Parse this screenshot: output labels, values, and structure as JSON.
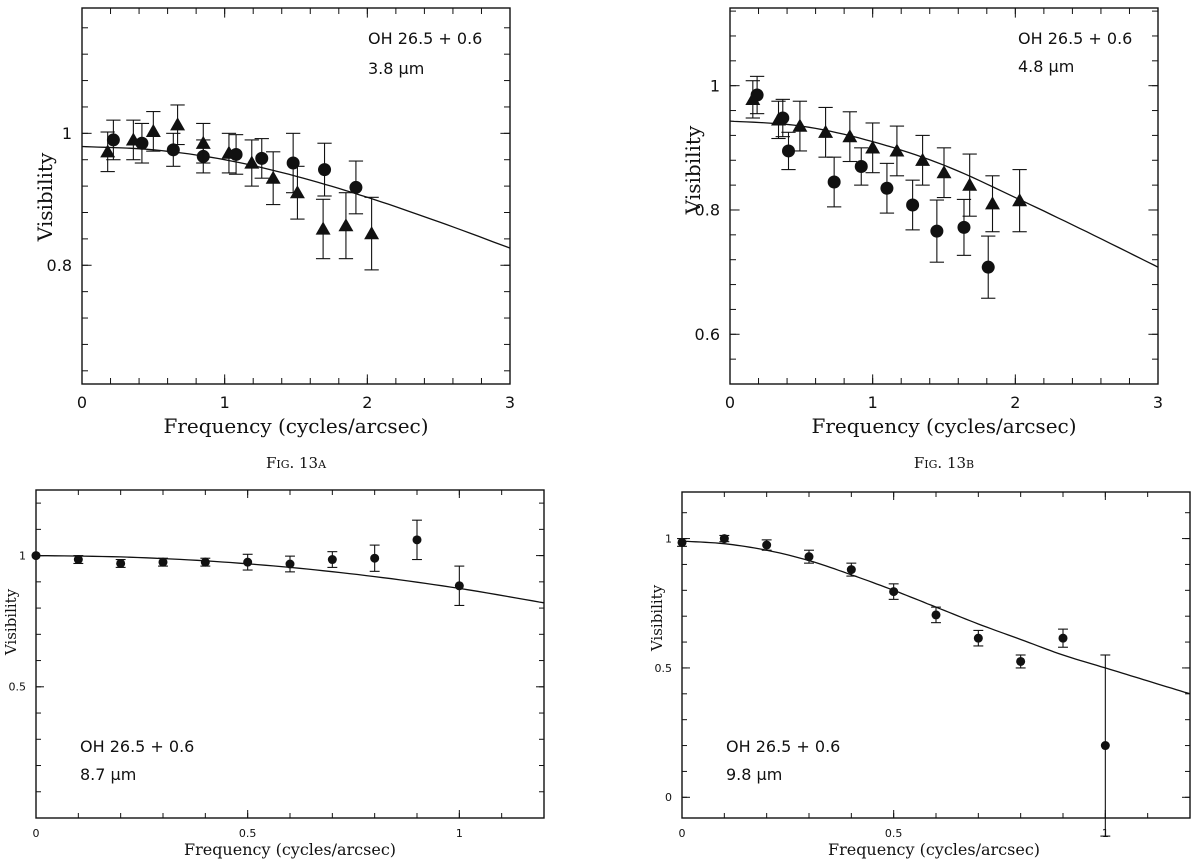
{
  "chart_data": [
    {
      "id": "a",
      "type": "scatter",
      "annotation": [
        "OH 26.5 + 0.6",
        "3.8 μm"
      ],
      "caption": "Fig. 13a",
      "xlabel": "Frequency (cycles/arcsec)",
      "ylabel": "Visibility",
      "xlim": [
        0,
        3
      ],
      "ylim": [
        0.62,
        1.19
      ],
      "xticks": [
        0,
        1,
        2,
        3
      ],
      "xtick_labels": [
        "0",
        "1",
        "2",
        "3"
      ],
      "yticks": [
        0.8,
        1.0
      ],
      "ytick_labels": [
        "0.8",
        "1"
      ],
      "series": [
        {
          "marker": "circle",
          "points": [
            {
              "x": 0.22,
              "y": 0.99,
              "err": 0.03
            },
            {
              "x": 0.42,
              "y": 0.985,
              "err": 0.03
            },
            {
              "x": 0.64,
              "y": 0.975,
              "err": 0.025
            },
            {
              "x": 0.85,
              "y": 0.965,
              "err": 0.025
            },
            {
              "x": 1.08,
              "y": 0.968,
              "err": 0.03
            },
            {
              "x": 1.26,
              "y": 0.962,
              "err": 0.03
            },
            {
              "x": 1.48,
              "y": 0.955,
              "err": 0.045
            },
            {
              "x": 1.7,
              "y": 0.945,
              "err": 0.04
            },
            {
              "x": 1.92,
              "y": 0.918,
              "err": 0.04
            }
          ]
        },
        {
          "marker": "triangle",
          "points": [
            {
              "x": 0.18,
              "y": 0.972,
              "err": 0.03
            },
            {
              "x": 0.36,
              "y": 0.99,
              "err": 0.03
            },
            {
              "x": 0.5,
              "y": 1.003,
              "err": 0.03
            },
            {
              "x": 0.67,
              "y": 1.013,
              "err": 0.03
            },
            {
              "x": 0.85,
              "y": 0.985,
              "err": 0.03
            },
            {
              "x": 1.03,
              "y": 0.97,
              "err": 0.03
            },
            {
              "x": 1.19,
              "y": 0.955,
              "err": 0.035
            },
            {
              "x": 1.34,
              "y": 0.932,
              "err": 0.04
            },
            {
              "x": 1.51,
              "y": 0.91,
              "err": 0.04
            },
            {
              "x": 1.69,
              "y": 0.855,
              "err": 0.045
            },
            {
              "x": 1.85,
              "y": 0.86,
              "err": 0.05
            },
            {
              "x": 2.03,
              "y": 0.848,
              "err": 0.055
            }
          ]
        }
      ],
      "model": {
        "x": [
          0,
          0.5,
          1.0,
          1.5,
          2.0,
          2.5,
          3.0
        ],
        "y": [
          0.98,
          0.975,
          0.96,
          0.935,
          0.903,
          0.866,
          0.826
        ]
      }
    },
    {
      "id": "b",
      "type": "scatter",
      "annotation": [
        "OH 26.5 + 0.6",
        "4.8 μm"
      ],
      "caption": "Fig. 13b",
      "xlabel": "Frequency (cycles/arcsec)",
      "ylabel": "Visibility",
      "xlim": [
        0,
        3
      ],
      "ylim": [
        0.52,
        1.125
      ],
      "xticks": [
        0,
        1,
        2,
        3
      ],
      "xtick_labels": [
        "0",
        "1",
        "2",
        "3"
      ],
      "yticks": [
        0.6,
        0.8,
        1.0
      ],
      "ytick_labels": [
        "0.6",
        "0.8",
        "1"
      ],
      "series": [
        {
          "marker": "circle",
          "points": [
            {
              "x": 0.19,
              "y": 0.985,
              "err": 0.03
            },
            {
              "x": 0.37,
              "y": 0.948,
              "err": 0.03
            },
            {
              "x": 0.41,
              "y": 0.895,
              "err": 0.03
            },
            {
              "x": 0.73,
              "y": 0.845,
              "err": 0.04
            },
            {
              "x": 0.92,
              "y": 0.87,
              "err": 0.03
            },
            {
              "x": 1.1,
              "y": 0.835,
              "err": 0.04
            },
            {
              "x": 1.28,
              "y": 0.808,
              "err": 0.04
            },
            {
              "x": 1.45,
              "y": 0.766,
              "err": 0.05
            },
            {
              "x": 1.64,
              "y": 0.772,
              "err": 0.045
            },
            {
              "x": 1.81,
              "y": 0.708,
              "err": 0.05
            }
          ]
        },
        {
          "marker": "triangle",
          "points": [
            {
              "x": 0.16,
              "y": 0.978,
              "err": 0.03
            },
            {
              "x": 0.34,
              "y": 0.945,
              "err": 0.03
            },
            {
              "x": 0.49,
              "y": 0.935,
              "err": 0.04
            },
            {
              "x": 0.67,
              "y": 0.925,
              "err": 0.04
            },
            {
              "x": 0.84,
              "y": 0.918,
              "err": 0.04
            },
            {
              "x": 1.0,
              "y": 0.9,
              "err": 0.04
            },
            {
              "x": 1.17,
              "y": 0.895,
              "err": 0.04
            },
            {
              "x": 1.35,
              "y": 0.88,
              "err": 0.04
            },
            {
              "x": 1.5,
              "y": 0.86,
              "err": 0.04
            },
            {
              "x": 1.68,
              "y": 0.84,
              "err": 0.05
            },
            {
              "x": 1.84,
              "y": 0.81,
              "err": 0.045
            },
            {
              "x": 2.03,
              "y": 0.815,
              "err": 0.05
            }
          ]
        }
      ],
      "model": {
        "x": [
          0,
          0.5,
          1.0,
          1.5,
          2.0,
          2.5,
          3.0
        ],
        "y": [
          0.943,
          0.935,
          0.91,
          0.872,
          0.82,
          0.765,
          0.708
        ]
      }
    },
    {
      "id": "c",
      "type": "scatter",
      "annotation": [
        "OH 26.5 + 0.6",
        "8.7 μm"
      ],
      "caption": "",
      "xlabel": "Frequency (cycles/arcsec)",
      "ylabel": "Visibility",
      "xlim": [
        0,
        1.2
      ],
      "ylim": [
        0,
        1.25
      ],
      "xticks": [
        0,
        0.5,
        1.0
      ],
      "xtick_labels": [
        "0",
        "0.5",
        "1"
      ],
      "yticks": [
        0.5,
        1.0
      ],
      "ytick_labels": [
        "0.5",
        "1"
      ],
      "series": [
        {
          "marker": "circle",
          "points": [
            {
              "x": 0.0,
              "y": 1.0,
              "err": 0.0
            },
            {
              "x": 0.1,
              "y": 0.985,
              "err": 0.015
            },
            {
              "x": 0.2,
              "y": 0.97,
              "err": 0.015
            },
            {
              "x": 0.3,
              "y": 0.975,
              "err": 0.015
            },
            {
              "x": 0.4,
              "y": 0.975,
              "err": 0.015
            },
            {
              "x": 0.5,
              "y": 0.975,
              "err": 0.03
            },
            {
              "x": 0.6,
              "y": 0.968,
              "err": 0.03
            },
            {
              "x": 0.7,
              "y": 0.985,
              "err": 0.03
            },
            {
              "x": 0.8,
              "y": 0.99,
              "err": 0.05
            },
            {
              "x": 0.9,
              "y": 1.06,
              "err": 0.075
            },
            {
              "x": 1.0,
              "y": 0.885,
              "err": 0.075
            }
          ]
        }
      ],
      "model": {
        "x": [
          0,
          0.2,
          0.4,
          0.6,
          0.8,
          1.0,
          1.2
        ],
        "y": [
          1.0,
          0.995,
          0.98,
          0.955,
          0.92,
          0.875,
          0.82
        ]
      }
    },
    {
      "id": "d",
      "type": "scatter",
      "annotation": [
        "OH 26.5 + 0.6",
        "9.8 μm"
      ],
      "caption": "",
      "xlabel": "Frequency (cycles/arcsec)",
      "ylabel": "Visibility",
      "xlim": [
        0,
        1.2
      ],
      "ylim": [
        -0.08,
        1.18
      ],
      "xticks": [
        0,
        0.5,
        1.0
      ],
      "xtick_labels": [
        "0",
        "0.5",
        "1"
      ],
      "yticks": [
        0,
        0.5,
        1.0
      ],
      "ytick_labels": [
        "0",
        "0.5",
        "1"
      ],
      "series": [
        {
          "marker": "circle",
          "points": [
            {
              "x": 0.0,
              "y": 0.985,
              "err": 0.015
            },
            {
              "x": 0.1,
              "y": 1.0,
              "err": 0.012
            },
            {
              "x": 0.2,
              "y": 0.975,
              "err": 0.02
            },
            {
              "x": 0.3,
              "y": 0.93,
              "err": 0.025
            },
            {
              "x": 0.4,
              "y": 0.88,
              "err": 0.025
            },
            {
              "x": 0.5,
              "y": 0.795,
              "err": 0.03
            },
            {
              "x": 0.6,
              "y": 0.705,
              "err": 0.03
            },
            {
              "x": 0.7,
              "y": 0.615,
              "err": 0.03
            },
            {
              "x": 0.8,
              "y": 0.525,
              "err": 0.025
            },
            {
              "x": 0.9,
              "y": 0.615,
              "err": 0.035
            },
            {
              "x": 1.0,
              "y": 0.2,
              "err": 0.35
            }
          ]
        }
      ],
      "model": {
        "x": [
          0,
          0.1,
          0.2,
          0.3,
          0.4,
          0.5,
          0.6,
          0.7,
          0.8,
          0.9,
          1.0,
          1.1,
          1.2
        ],
        "y": [
          0.99,
          0.98,
          0.955,
          0.915,
          0.86,
          0.8,
          0.735,
          0.67,
          0.61,
          0.55,
          0.5,
          0.45,
          0.4
        ]
      }
    }
  ]
}
